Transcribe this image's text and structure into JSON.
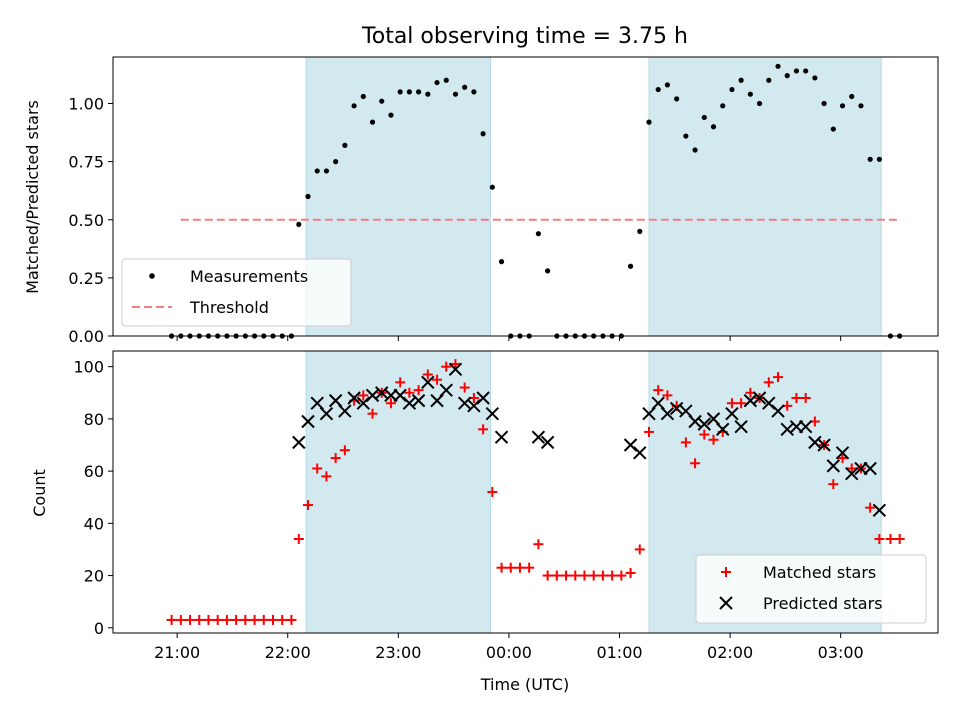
{
  "chart_data": {
    "title": "Total observing time = 3.75 h",
    "xlabel": "Time (UTC)",
    "x_ticks": [
      "21:00",
      "22:00",
      "23:00",
      "00:00",
      "01:00",
      "02:00",
      "03:00"
    ],
    "x_range_hours": [
      20.42,
      27.88
    ],
    "observing_windows": [
      {
        "start": "22:10",
        "end": "23:50"
      },
      {
        "start": "01:16",
        "end": "03:22"
      }
    ],
    "observing_window_color": "#d3e9f0",
    "panels": [
      {
        "type": "scatter",
        "ylabel": "Matched/Predicted stars",
        "ylim": [
          0,
          1.2
        ],
        "y_ticks": [
          "0.00",
          "0.25",
          "0.50",
          "0.75",
          "1.00"
        ],
        "threshold": {
          "name": "Threshold",
          "value": 0.5,
          "x_start": "21:02",
          "x_end": "03:32",
          "color": "#f08080",
          "style": "dashed"
        },
        "legend": {
          "placement": "lower left",
          "entries": [
            "Measurements",
            "Threshold"
          ]
        },
        "series": [
          {
            "name": "Measurements",
            "color": "#000000",
            "marker": "dot",
            "points": [
              [
                "20:57",
                0
              ],
              [
                "21:02",
                0
              ],
              [
                "21:07",
                0
              ],
              [
                "21:12",
                0
              ],
              [
                "21:17",
                0
              ],
              [
                "21:22",
                0
              ],
              [
                "21:27",
                0
              ],
              [
                "21:32",
                0
              ],
              [
                "21:37",
                0
              ],
              [
                "21:42",
                0
              ],
              [
                "21:47",
                0
              ],
              [
                "21:52",
                0
              ],
              [
                "21:57",
                0
              ],
              [
                "22:02",
                0
              ],
              [
                "22:06",
                0.48
              ],
              [
                "22:11",
                0.6
              ],
              [
                "22:16",
                0.71
              ],
              [
                "22:21",
                0.71
              ],
              [
                "22:26",
                0.75
              ],
              [
                "22:31",
                0.82
              ],
              [
                "22:36",
                0.99
              ],
              [
                "22:41",
                1.03
              ],
              [
                "22:46",
                0.92
              ],
              [
                "22:51",
                1.01
              ],
              [
                "22:56",
                0.95
              ],
              [
                "23:01",
                1.05
              ],
              [
                "23:06",
                1.05
              ],
              [
                "23:11",
                1.05
              ],
              [
                "23:16",
                1.04
              ],
              [
                "23:21",
                1.09
              ],
              [
                "23:26",
                1.1
              ],
              [
                "23:31",
                1.04
              ],
              [
                "23:36",
                1.07
              ],
              [
                "23:41",
                1.05
              ],
              [
                "23:46",
                0.87
              ],
              [
                "23:51",
                0.64
              ],
              [
                "23:56",
                0.32
              ],
              [
                "00:01",
                0
              ],
              [
                "00:06",
                0
              ],
              [
                "00:11",
                0
              ],
              [
                "00:16",
                0.44
              ],
              [
                "00:21",
                0.28
              ],
              [
                "00:26",
                0
              ],
              [
                "00:31",
                0
              ],
              [
                "00:36",
                0
              ],
              [
                "00:41",
                0
              ],
              [
                "00:46",
                0
              ],
              [
                "00:51",
                0
              ],
              [
                "00:56",
                0
              ],
              [
                "01:01",
                0
              ],
              [
                "01:06",
                0.3
              ],
              [
                "01:11",
                0.45
              ],
              [
                "01:16",
                0.92
              ],
              [
                "01:21",
                1.06
              ],
              [
                "01:26",
                1.08
              ],
              [
                "01:31",
                1.02
              ],
              [
                "01:36",
                0.86
              ],
              [
                "01:41",
                0.8
              ],
              [
                "01:46",
                0.94
              ],
              [
                "01:51",
                0.9
              ],
              [
                "01:56",
                0.99
              ],
              [
                "02:01",
                1.06
              ],
              [
                "02:06",
                1.1
              ],
              [
                "02:11",
                1.04
              ],
              [
                "02:16",
                1.0
              ],
              [
                "02:21",
                1.1
              ],
              [
                "02:26",
                1.16
              ],
              [
                "02:31",
                1.12
              ],
              [
                "02:36",
                1.14
              ],
              [
                "02:41",
                1.14
              ],
              [
                "02:46",
                1.11
              ],
              [
                "02:51",
                1.0
              ],
              [
                "02:56",
                0.89
              ],
              [
                "03:01",
                0.99
              ],
              [
                "03:06",
                1.03
              ],
              [
                "03:11",
                0.99
              ],
              [
                "03:16",
                0.76
              ],
              [
                "03:21",
                0.76
              ],
              [
                "03:27",
                0
              ],
              [
                "03:32",
                0
              ]
            ]
          }
        ]
      },
      {
        "type": "scatter",
        "ylabel": "Count",
        "ylim": [
          -2,
          106
        ],
        "y_ticks": [
          "0",
          "20",
          "40",
          "60",
          "80",
          "100"
        ],
        "legend": {
          "placement": "lower right",
          "entries": [
            "Matched stars",
            "Predicted stars"
          ]
        },
        "series": [
          {
            "name": "Matched stars",
            "color": "#ff0000",
            "marker": "plus",
            "points": [
              [
                "20:57",
                3
              ],
              [
                "21:02",
                3
              ],
              [
                "21:07",
                3
              ],
              [
                "21:12",
                3
              ],
              [
                "21:17",
                3
              ],
              [
                "21:22",
                3
              ],
              [
                "21:27",
                3
              ],
              [
                "21:32",
                3
              ],
              [
                "21:37",
                3
              ],
              [
                "21:42",
                3
              ],
              [
                "21:47",
                3
              ],
              [
                "21:52",
                3
              ],
              [
                "21:57",
                3
              ],
              [
                "22:02",
                3
              ],
              [
                "22:06",
                34
              ],
              [
                "22:11",
                47
              ],
              [
                "22:16",
                61
              ],
              [
                "22:21",
                58
              ],
              [
                "22:26",
                65
              ],
              [
                "22:31",
                68
              ],
              [
                "22:36",
                87
              ],
              [
                "22:41",
                89
              ],
              [
                "22:46",
                82
              ],
              [
                "22:51",
                90
              ],
              [
                "22:56",
                86
              ],
              [
                "23:01",
                94
              ],
              [
                "23:06",
                90
              ],
              [
                "23:11",
                91
              ],
              [
                "23:16",
                97
              ],
              [
                "23:21",
                95
              ],
              [
                "23:26",
                100
              ],
              [
                "23:31",
                101
              ],
              [
                "23:36",
                92
              ],
              [
                "23:41",
                88
              ],
              [
                "23:46",
                76
              ],
              [
                "23:51",
                52
              ],
              [
                "23:56",
                23
              ],
              [
                "00:01",
                23
              ],
              [
                "00:06",
                23
              ],
              [
                "00:11",
                23
              ],
              [
                "00:16",
                32
              ],
              [
                "00:21",
                20
              ],
              [
                "00:26",
                20
              ],
              [
                "00:31",
                20
              ],
              [
                "00:36",
                20
              ],
              [
                "00:41",
                20
              ],
              [
                "00:46",
                20
              ],
              [
                "00:51",
                20
              ],
              [
                "00:56",
                20
              ],
              [
                "01:01",
                20
              ],
              [
                "01:06",
                21
              ],
              [
                "01:11",
                30
              ],
              [
                "01:16",
                75
              ],
              [
                "01:21",
                91
              ],
              [
                "01:26",
                89
              ],
              [
                "01:31",
                85
              ],
              [
                "01:36",
                71
              ],
              [
                "01:41",
                63
              ],
              [
                "01:46",
                74
              ],
              [
                "01:51",
                72
              ],
              [
                "01:56",
                75
              ],
              [
                "02:01",
                86
              ],
              [
                "02:06",
                86
              ],
              [
                "02:11",
                90
              ],
              [
                "02:16",
                88
              ],
              [
                "02:21",
                94
              ],
              [
                "02:26",
                96
              ],
              [
                "02:31",
                85
              ],
              [
                "02:36",
                88
              ],
              [
                "02:41",
                88
              ],
              [
                "02:46",
                79
              ],
              [
                "02:51",
                70
              ],
              [
                "02:56",
                55
              ],
              [
                "03:01",
                65
              ],
              [
                "03:06",
                61
              ],
              [
                "03:11",
                61
              ],
              [
                "03:16",
                46
              ],
              [
                "03:21",
                34
              ],
              [
                "03:27",
                34
              ],
              [
                "03:32",
                34
              ]
            ]
          },
          {
            "name": "Predicted stars",
            "color": "#000000",
            "marker": "x",
            "points": [
              [
                "22:06",
                71
              ],
              [
                "22:11",
                79
              ],
              [
                "22:16",
                86
              ],
              [
                "22:21",
                82
              ],
              [
                "22:26",
                87
              ],
              [
                "22:31",
                83
              ],
              [
                "22:36",
                88
              ],
              [
                "22:41",
                86
              ],
              [
                "22:46",
                89
              ],
              [
                "22:51",
                90
              ],
              [
                "22:56",
                89
              ],
              [
                "23:01",
                89
              ],
              [
                "23:06",
                86
              ],
              [
                "23:11",
                87
              ],
              [
                "23:16",
                94
              ],
              [
                "23:21",
                87
              ],
              [
                "23:26",
                91
              ],
              [
                "23:31",
                99
              ],
              [
                "23:36",
                86
              ],
              [
                "23:41",
                85
              ],
              [
                "23:46",
                88
              ],
              [
                "23:51",
                82
              ],
              [
                "23:56",
                73
              ],
              [
                "00:16",
                73
              ],
              [
                "00:21",
                71
              ],
              [
                "01:06",
                70
              ],
              [
                "01:11",
                67
              ],
              [
                "01:16",
                82
              ],
              [
                "01:21",
                86
              ],
              [
                "01:26",
                82
              ],
              [
                "01:31",
                84
              ],
              [
                "01:36",
                83
              ],
              [
                "01:41",
                79
              ],
              [
                "01:46",
                78
              ],
              [
                "01:51",
                80
              ],
              [
                "01:56",
                76
              ],
              [
                "02:01",
                82
              ],
              [
                "02:06",
                77
              ],
              [
                "02:11",
                87
              ],
              [
                "02:16",
                88
              ],
              [
                "02:21",
                86
              ],
              [
                "02:26",
                83
              ],
              [
                "02:31",
                76
              ],
              [
                "02:36",
                77
              ],
              [
                "02:41",
                77
              ],
              [
                "02:46",
                71
              ],
              [
                "02:51",
                70
              ],
              [
                "02:56",
                62
              ],
              [
                "03:01",
                67
              ],
              [
                "03:06",
                59
              ],
              [
                "03:11",
                61
              ],
              [
                "03:16",
                61
              ],
              [
                "03:21",
                45
              ]
            ]
          }
        ]
      }
    ]
  }
}
